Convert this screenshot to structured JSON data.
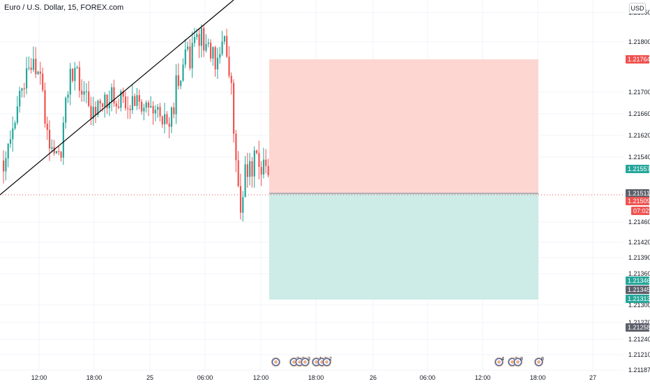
{
  "title": "Euro / U.S. Dollar, 15, FOREX.com",
  "currency_button": "USD",
  "colors": {
    "up": "#26a69a",
    "down": "#ef5350",
    "stop_zone": "#fdd6d2",
    "target_zone": "#cdebe7",
    "trendline": "#000000",
    "grid": "#f0f3fa"
  },
  "chart_data": {
    "type": "candlestick",
    "y_ticks": [
      "1.21850",
      "1.21800",
      "1.21700",
      "1.21660",
      "1.21620",
      "1.21540",
      "1.21460",
      "1.21420",
      "1.21390",
      "1.21360",
      "1.21300",
      "1.21270",
      "1.21240",
      "1.21210",
      "1.21187"
    ],
    "x_ticks": [
      "12:00",
      "18:00",
      "25",
      "06:00",
      "12:00",
      "18:00",
      "26",
      "06:00",
      "12:00",
      "18:00",
      "27"
    ],
    "price_tags": [
      {
        "value": "1.21764",
        "color": "#ef5350"
      },
      {
        "value": "1.21557",
        "color": "#26a69a"
      },
      {
        "value": "1.21511",
        "color": "#5d606b"
      },
      {
        "value": "1.21509",
        "color": "#ef5350"
      },
      {
        "value": "07:02",
        "color": "#ef5350"
      },
      {
        "value": "1.21346",
        "color": "#26a69a"
      },
      {
        "value": "1.21345",
        "color": "#5d606b"
      },
      {
        "value": "1.21313",
        "color": "#26a69a"
      },
      {
        "value": "1.21258",
        "color": "#5d606b"
      }
    ],
    "position_tool": {
      "entry": 1.21511,
      "stop": 1.21764,
      "target": 1.21313
    },
    "events": [
      {
        "count": ""
      },
      {
        "count": "3"
      },
      {
        "count": "8"
      },
      {
        "count": "3"
      },
      {
        "count": "4"
      },
      {
        "count": "3"
      },
      {
        "count": "2"
      },
      {
        "count": "4"
      },
      {
        "count": "2"
      },
      {
        "count": "8"
      },
      {
        "count": "8"
      }
    ]
  }
}
